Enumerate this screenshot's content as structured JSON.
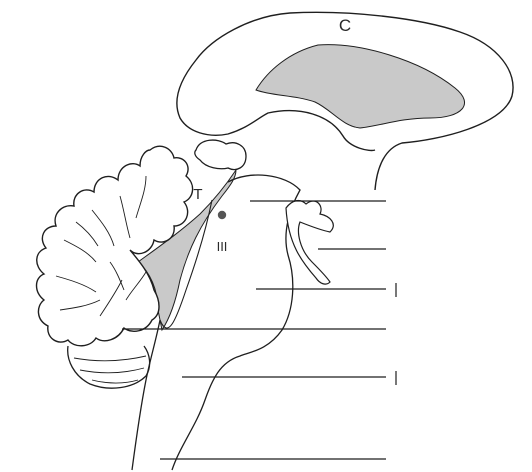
{
  "labels": {
    "c": "C",
    "t": "T",
    "iii": "III"
  },
  "colors": {
    "ink": "#1f1f1f",
    "shade": "#c9c9c9",
    "background": "#ffffff"
  },
  "leader_lines": 7
}
